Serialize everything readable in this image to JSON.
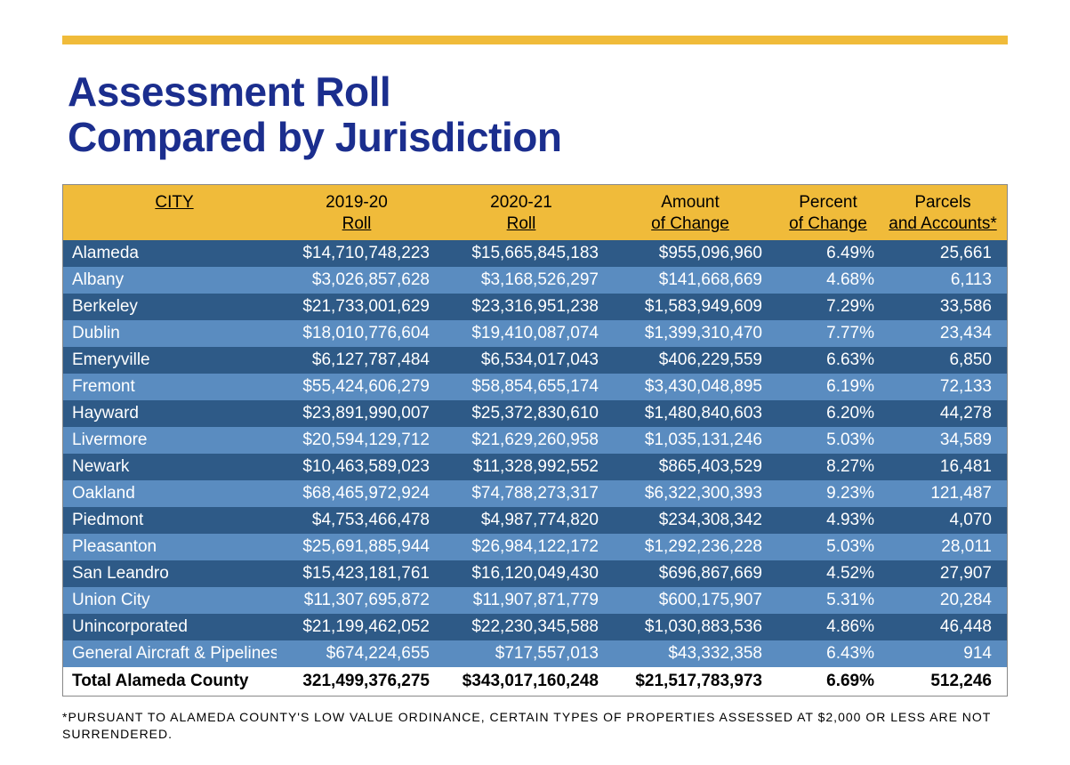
{
  "title_line1": "Assessment Roll",
  "title_line2": "Compared by Jurisdiction",
  "accent_bar_color": "#f0bb3a",
  "title_color": "#1b2e8e",
  "row_dark_color": "#2e5a87",
  "row_light_color": "#5a8cc0",
  "columns": {
    "c0a": "CITY",
    "c1a": "2019-20",
    "c1b": "Roll",
    "c2a": "2020-21",
    "c2b": "Roll",
    "c3a": "Amount",
    "c3b": "of Change",
    "c4a": "Percent",
    "c4b": "of Change",
    "c5a": "Parcels",
    "c5b": "and Accounts*"
  },
  "rows": [
    {
      "city": "Alameda",
      "r19": "$14,710,748,223",
      "r20": "$15,665,845,183",
      "amt": "$955,096,960",
      "pct": "6.49%",
      "par": "25,661"
    },
    {
      "city": "Albany",
      "r19": "$3,026,857,628",
      "r20": "$3,168,526,297",
      "amt": "$141,668,669",
      "pct": "4.68%",
      "par": "6,113"
    },
    {
      "city": "Berkeley",
      "r19": "$21,733,001,629",
      "r20": "$23,316,951,238",
      "amt": "$1,583,949,609",
      "pct": "7.29%",
      "par": "33,586"
    },
    {
      "city": "Dublin",
      "r19": "$18,010,776,604",
      "r20": "$19,410,087,074",
      "amt": "$1,399,310,470",
      "pct": "7.77%",
      "par": "23,434"
    },
    {
      "city": "Emeryville",
      "r19": "$6,127,787,484",
      "r20": "$6,534,017,043",
      "amt": "$406,229,559",
      "pct": "6.63%",
      "par": "6,850"
    },
    {
      "city": "Fremont",
      "r19": "$55,424,606,279",
      "r20": "$58,854,655,174",
      "amt": "$3,430,048,895",
      "pct": "6.19%",
      "par": "72,133"
    },
    {
      "city": "Hayward",
      "r19": "$23,891,990,007",
      "r20": "$25,372,830,610",
      "amt": "$1,480,840,603",
      "pct": "6.20%",
      "par": "44,278"
    },
    {
      "city": "Livermore",
      "r19": "$20,594,129,712",
      "r20": "$21,629,260,958",
      "amt": "$1,035,131,246",
      "pct": "5.03%",
      "par": "34,589"
    },
    {
      "city": "Newark",
      "r19": "$10,463,589,023",
      "r20": "$11,328,992,552",
      "amt": "$865,403,529",
      "pct": "8.27%",
      "par": "16,481"
    },
    {
      "city": "Oakland",
      "r19": "$68,465,972,924",
      "r20": "$74,788,273,317",
      "amt": "$6,322,300,393",
      "pct": "9.23%",
      "par": "121,487"
    },
    {
      "city": "Piedmont",
      "r19": "$4,753,466,478",
      "r20": "$4,987,774,820",
      "amt": "$234,308,342",
      "pct": "4.93%",
      "par": "4,070"
    },
    {
      "city": "Pleasanton",
      "r19": "$25,691,885,944",
      "r20": "$26,984,122,172",
      "amt": "$1,292,236,228",
      "pct": "5.03%",
      "par": "28,011"
    },
    {
      "city": "San Leandro",
      "r19": "$15,423,181,761",
      "r20": "$16,120,049,430",
      "amt": "$696,867,669",
      "pct": "4.52%",
      "par": "27,907"
    },
    {
      "city": "Union City",
      "r19": "$11,307,695,872",
      "r20": "$11,907,871,779",
      "amt": "$600,175,907",
      "pct": "5.31%",
      "par": "20,284"
    },
    {
      "city": "Unincorporated",
      "r19": "$21,199,462,052",
      "r20": "$22,230,345,588",
      "amt": "$1,030,883,536",
      "pct": "4.86%",
      "par": "46,448"
    },
    {
      "city": "General Aircraft & Pipelines",
      "r19": "$674,224,655",
      "r20": "$717,557,013",
      "amt": "$43,332,358",
      "pct": "6.43%",
      "par": "914"
    }
  ],
  "total": {
    "city": "Total Alameda County",
    "r19": "321,499,376,275",
    "r20": "$343,017,160,248",
    "amt": "$21,517,783,973",
    "pct": "6.69%",
    "par": "512,246"
  },
  "footnote": "*PURSUANT TO ALAMEDA COUNTY'S LOW VALUE ORDINANCE, CERTAIN TYPES OF PROPERTIES ASSESSED AT $2,000 OR LESS ARE NOT SURRENDERED."
}
